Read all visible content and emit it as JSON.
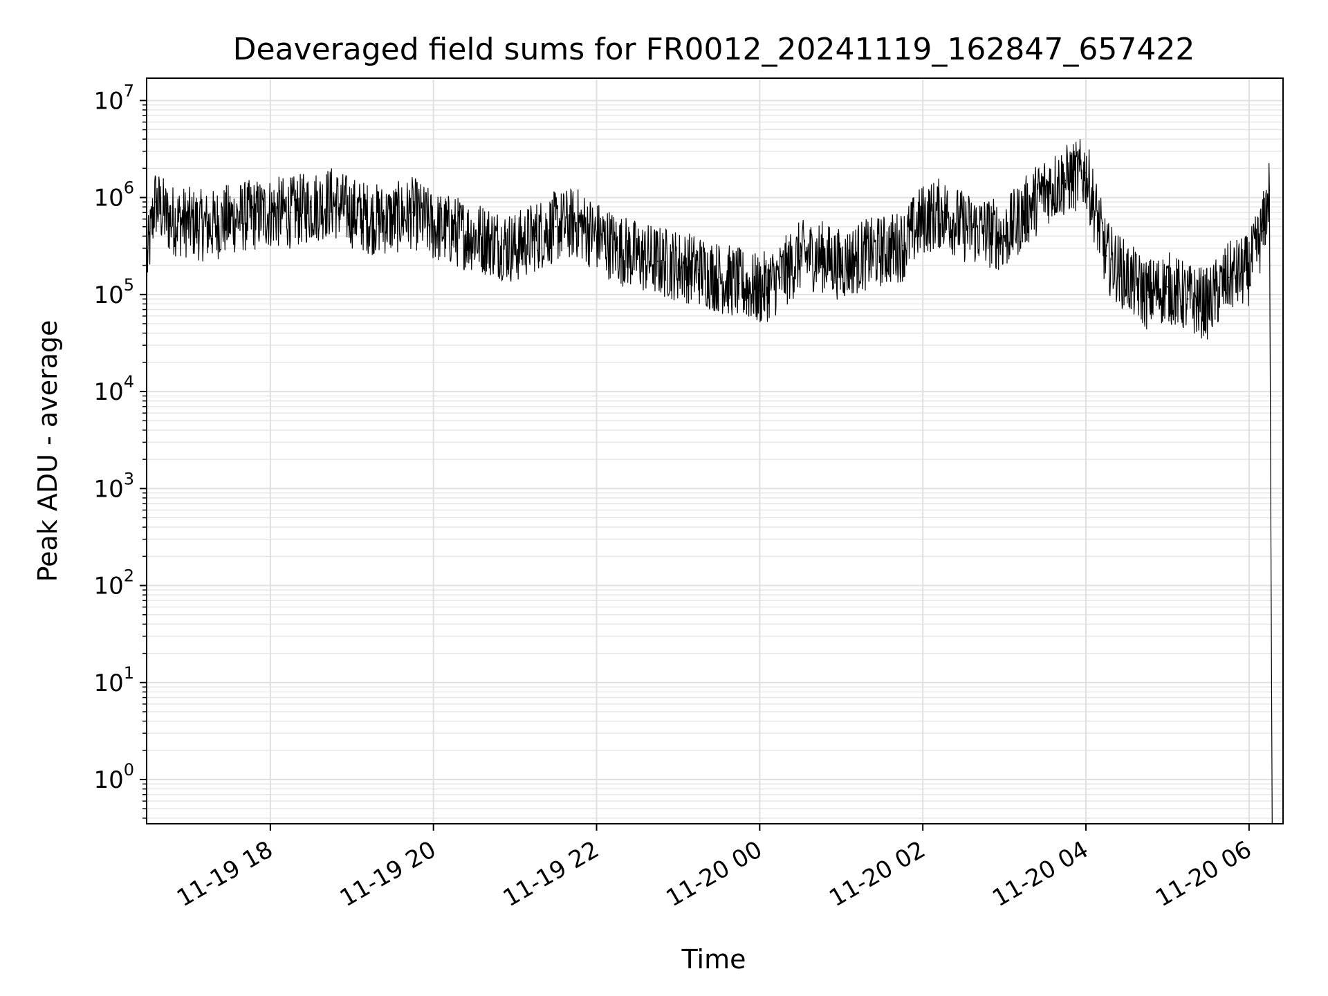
{
  "chart_data": {
    "type": "line",
    "title": "Deaveraged field sums for FR0012_20241119_162847_657422",
    "xlabel": "Time",
    "ylabel": "Peak ADU - average",
    "x_scale": "time",
    "y_scale": "log",
    "xlim": [
      "11-19 16:29",
      "11-20 06:25"
    ],
    "ylim": [
      0.35,
      17000000
    ],
    "grid": "on (major and minor)",
    "x_ticks": [
      "11-19 18",
      "11-19 20",
      "11-19 22",
      "11-20 00",
      "11-20 02",
      "11-20 04",
      "11-20 06"
    ],
    "y_ticks": [
      {
        "base": "10",
        "exp": "0"
      },
      {
        "base": "10",
        "exp": "1"
      },
      {
        "base": "10",
        "exp": "2"
      },
      {
        "base": "10",
        "exp": "3"
      },
      {
        "base": "10",
        "exp": "4"
      },
      {
        "base": "10",
        "exp": "5"
      },
      {
        "base": "10",
        "exp": "6"
      },
      {
        "base": "10",
        "exp": "7"
      }
    ],
    "line_color": "#000000",
    "series": [
      {
        "x": [
          "11-19 16:29",
          "11-19 16:35",
          "11-19 16:45",
          "11-19 17:00",
          "11-19 17:15",
          "11-19 17:30",
          "11-19 17:45",
          "11-19 18:00",
          "11-19 18:15",
          "11-19 18:30",
          "11-19 18:45",
          "11-19 19:00",
          "11-19 19:15",
          "11-19 19:30",
          "11-19 19:45",
          "11-19 20:00",
          "11-19 20:15",
          "11-19 20:30",
          "11-19 20:45",
          "11-19 21:00",
          "11-19 21:15",
          "11-19 21:30",
          "11-19 21:45",
          "11-19 22:00",
          "11-19 22:15",
          "11-19 22:30",
          "11-19 22:45",
          "11-19 23:00",
          "11-19 23:15",
          "11-19 23:30",
          "11-19 23:45",
          "11-20 00:00",
          "11-20 00:15",
          "11-20 00:30",
          "11-20 00:45",
          "11-20 01:00",
          "11-20 01:15",
          "11-20 01:30",
          "11-20 01:45",
          "11-20 02:00",
          "11-20 02:15",
          "11-20 02:30",
          "11-20 02:45",
          "11-20 03:00",
          "11-20 03:15",
          "11-20 03:30",
          "11-20 03:45",
          "11-20 04:00",
          "11-20 04:15",
          "11-20 04:30",
          "11-20 04:45",
          "11-20 05:00",
          "11-20 05:15",
          "11-20 05:30",
          "11-20 05:45",
          "11-20 06:00",
          "11-20 06:10",
          "11-20 06:15",
          "11-20 06:17"
        ],
        "y": [
          200000,
          900000,
          600000,
          550000,
          500000,
          600000,
          650000,
          700000,
          700000,
          800000,
          900000,
          700000,
          600000,
          600000,
          700000,
          500000,
          450000,
          400000,
          350000,
          300000,
          400000,
          500000,
          550000,
          400000,
          300000,
          250000,
          220000,
          200000,
          180000,
          150000,
          130000,
          110000,
          150000,
          250000,
          250000,
          200000,
          250000,
          280000,
          320000,
          600000,
          700000,
          500000,
          450000,
          400000,
          700000,
          1200000,
          1500000,
          1800000,
          250000,
          150000,
          100000,
          120000,
          90000,
          80000,
          150000,
          180000,
          450000,
          1200000,
          0.35
        ]
      }
    ]
  }
}
